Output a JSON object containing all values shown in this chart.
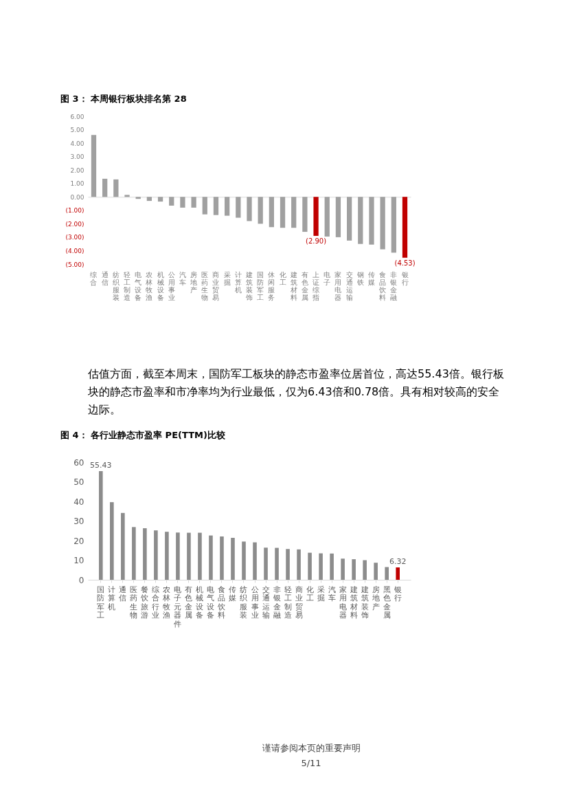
{
  "chart_data": [
    {
      "type": "bar",
      "title": "图 3： 本周银行板块排名第 28",
      "categories": [
        "综合",
        "通信",
        "纺织服装",
        "轻工制造",
        "电气设备",
        "农林牧渔",
        "机械设备",
        "公用事业",
        "汽车",
        "房地产",
        "医药生物",
        "商业贸易",
        "采掘",
        "计算机",
        "建筑装饰",
        "国防军工",
        "休闲服务",
        "化工",
        "建筑材料",
        "有色金属",
        "上证综指",
        "电子",
        "家用电器",
        "交通运输",
        "钢铁",
        "传媒",
        "食品饮料",
        "非银金融",
        "银行"
      ],
      "values": [
        4.6,
        1.35,
        1.3,
        0.15,
        -0.15,
        -0.3,
        -0.35,
        -0.65,
        -0.8,
        -0.8,
        -1.3,
        -1.35,
        -1.4,
        -1.55,
        -1.8,
        -2.0,
        -2.25,
        -2.3,
        -2.3,
        -2.6,
        -2.9,
        -2.95,
        -3.0,
        -3.25,
        -3.5,
        -3.55,
        -3.9,
        -4.15,
        -4.53
      ],
      "colors": [
        "#a0a0a0",
        "#a0a0a0",
        "#a0a0a0",
        "#a0a0a0",
        "#a0a0a0",
        "#a0a0a0",
        "#a0a0a0",
        "#a0a0a0",
        "#a0a0a0",
        "#a0a0a0",
        "#a0a0a0",
        "#a0a0a0",
        "#a0a0a0",
        "#a0a0a0",
        "#a0a0a0",
        "#a0a0a0",
        "#a0a0a0",
        "#a0a0a0",
        "#a0a0a0",
        "#a0a0a0",
        "#c00000",
        "#a0a0a0",
        "#a0a0a0",
        "#a0a0a0",
        "#a0a0a0",
        "#a0a0a0",
        "#a0a0a0",
        "#a0a0a0",
        "#c00000"
      ],
      "value_labels": [
        null,
        null,
        null,
        null,
        null,
        null,
        null,
        null,
        null,
        null,
        null,
        null,
        null,
        null,
        null,
        null,
        null,
        null,
        null,
        null,
        "(2.90)",
        null,
        null,
        null,
        null,
        null,
        null,
        null,
        "(4.53)"
      ],
      "ylim": [
        -5,
        6
      ],
      "yticks": [
        {
          "value": 6,
          "label": "6.00"
        },
        {
          "value": 5,
          "label": "5.00"
        },
        {
          "value": 4,
          "label": "4.00"
        },
        {
          "value": 3,
          "label": "3.00"
        },
        {
          "value": 2,
          "label": "2.00"
        },
        {
          "value": 1,
          "label": "1.00"
        },
        {
          "value": 0,
          "label": "0.00"
        },
        {
          "value": -1,
          "label": "(1.00)"
        },
        {
          "value": -2,
          "label": "(2.00)"
        },
        {
          "value": -3,
          "label": "(3.00)"
        },
        {
          "value": -4,
          "label": "(4.00)"
        },
        {
          "value": -5,
          "label": "(5.00)"
        }
      ]
    },
    {
      "type": "other",
      "annotations": [
        "估值方面，截至本周末，国防军工板块的静态市盈率位居首位，高达55.43倍。银行板块的静态市盈率和市净率均为行业最低，仅为6.43倍和0.78倍。具有相对较高的安全边际。"
      ]
    },
    {
      "type": "bar",
      "title": "图 4： 各行业静态市盈率 PE(TTM)比较",
      "categories": [
        "国防军工",
        "计算机",
        "通信",
        "医药生物",
        "餐饮旅游",
        "综合行业",
        "农林牧渔",
        "电子元器件",
        "有色金属",
        "机械设备",
        "电气设备",
        "食品饮料",
        "传媒",
        "纺织服装",
        "公用事业",
        "交通运输",
        "非银金融",
        "轻工制造",
        "商业贸易",
        "化工",
        "采掘",
        "汽车",
        "家用电器",
        "建筑材料",
        "建筑装饰",
        "房地产",
        "黑色金属",
        "银行"
      ],
      "values": [
        55.43,
        39.6,
        34.1,
        26.9,
        26.3,
        25.2,
        24.5,
        24.1,
        24.0,
        24.0,
        22.6,
        22.1,
        21.4,
        19.5,
        19.1,
        16.4,
        16.3,
        15.7,
        15.5,
        13.8,
        13.5,
        13.4,
        10.8,
        10.5,
        10.0,
        8.7,
        6.5,
        6.32
      ],
      "colors": [
        "#8c8c8c",
        "#8c8c8c",
        "#8c8c8c",
        "#8c8c8c",
        "#8c8c8c",
        "#8c8c8c",
        "#8c8c8c",
        "#8c8c8c",
        "#8c8c8c",
        "#8c8c8c",
        "#8c8c8c",
        "#8c8c8c",
        "#8c8c8c",
        "#8c8c8c",
        "#8c8c8c",
        "#8c8c8c",
        "#8c8c8c",
        "#8c8c8c",
        "#8c8c8c",
        "#8c8c8c",
        "#8c8c8c",
        "#8c8c8c",
        "#8c8c8c",
        "#8c8c8c",
        "#8c8c8c",
        "#8c8c8c",
        "#8c8c8c",
        "#c00000"
      ],
      "value_labels": [
        "55.43",
        null,
        null,
        null,
        null,
        null,
        null,
        null,
        null,
        null,
        null,
        null,
        null,
        null,
        null,
        null,
        null,
        null,
        null,
        null,
        null,
        null,
        null,
        null,
        null,
        null,
        null,
        "6.32"
      ],
      "ylim": [
        0,
        60
      ],
      "yticks": [
        0,
        10,
        20,
        30,
        40,
        50,
        60
      ]
    },
    {
      "type": "other",
      "annotations": [
        "谨请参阅本页的重要声明",
        "5/11"
      ]
    }
  ]
}
